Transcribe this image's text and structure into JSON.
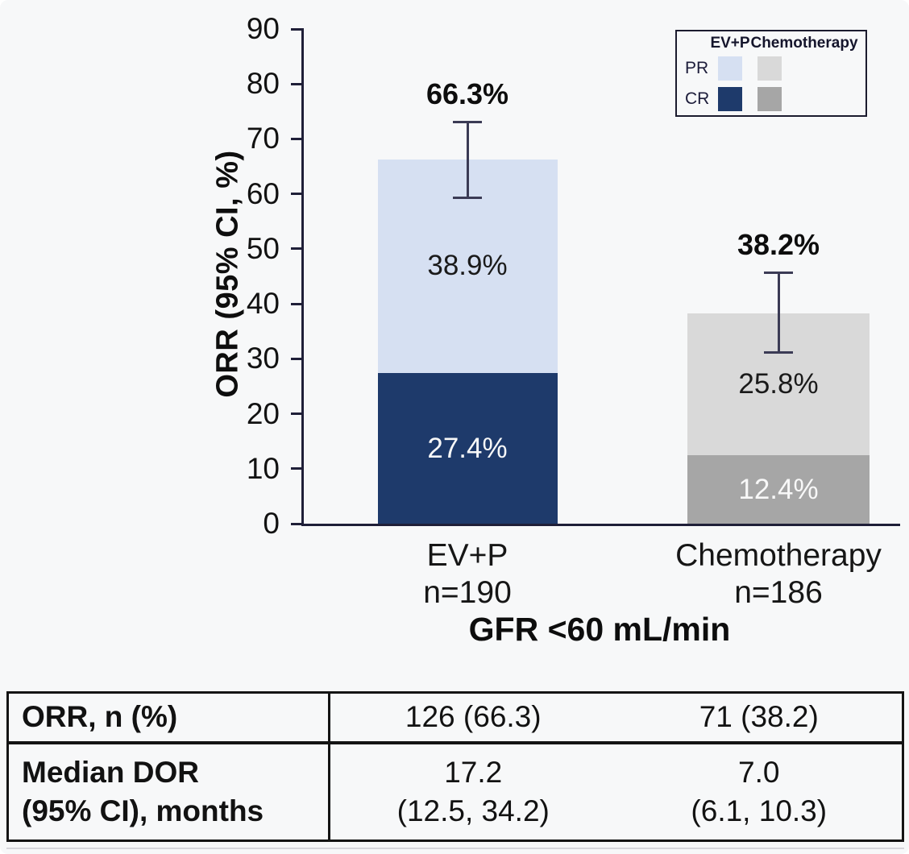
{
  "colors": {
    "axis": "#1f1f38",
    "error_bar": "#3b3b55",
    "background": "#f7f8f9"
  },
  "chart_data": {
    "type": "bar",
    "stacked": true,
    "ylabel": "ORR (95% CI, %)",
    "xlabel": "GFR <60 mL/min",
    "ylim": [
      0,
      90
    ],
    "yticks": [
      0,
      10,
      20,
      30,
      40,
      50,
      60,
      70,
      80,
      90
    ],
    "grid": false,
    "legend_position": "top-right",
    "categories": [
      {
        "name": "EV+P",
        "n_label": "n=190",
        "total": 66.3,
        "total_label": "66.3%",
        "ci_low": 59.3,
        "ci_high": 73.0,
        "segments": [
          {
            "name": "CR",
            "value": 27.4,
            "label": "27.4%",
            "color": "#1e3a6b",
            "text_color": "#f8f8f8"
          },
          {
            "name": "PR",
            "value": 38.9,
            "label": "38.9%",
            "color": "#d6e0f2",
            "text_color": "#1a1a1a"
          }
        ]
      },
      {
        "name": "Chemotherapy",
        "n_label": "n=186",
        "total": 38.2,
        "total_label": "38.2%",
        "ci_low": 31.2,
        "ci_high": 45.6,
        "segments": [
          {
            "name": "CR",
            "value": 12.4,
            "label": "12.4%",
            "color": "#a6a6a6",
            "text_color": "#f8f8f8"
          },
          {
            "name": "PR",
            "value": 25.8,
            "label": "25.8%",
            "color": "#d9d9d9",
            "text_color": "#1a1a1a"
          }
        ]
      }
    ],
    "legend": {
      "columns": [
        "EV+P",
        "Chemotherapy"
      ],
      "rows": [
        {
          "label": "PR",
          "colors": [
            "#d6e0f2",
            "#d9d9d9"
          ]
        },
        {
          "label": "CR",
          "colors": [
            "#1e3a6b",
            "#a6a6a6"
          ]
        }
      ]
    }
  },
  "table": {
    "rows": [
      {
        "label_lines": [
          "ORR, n (%)"
        ],
        "cells": [
          [
            "126 (66.3)"
          ],
          [
            "71 (38.2)"
          ]
        ]
      },
      {
        "label_lines": [
          "Median DOR",
          "(95% CI), months"
        ],
        "cells": [
          [
            "17.2",
            "(12.5, 34.2)"
          ],
          [
            "7.0",
            "(6.1, 10.3)"
          ]
        ]
      }
    ]
  }
}
